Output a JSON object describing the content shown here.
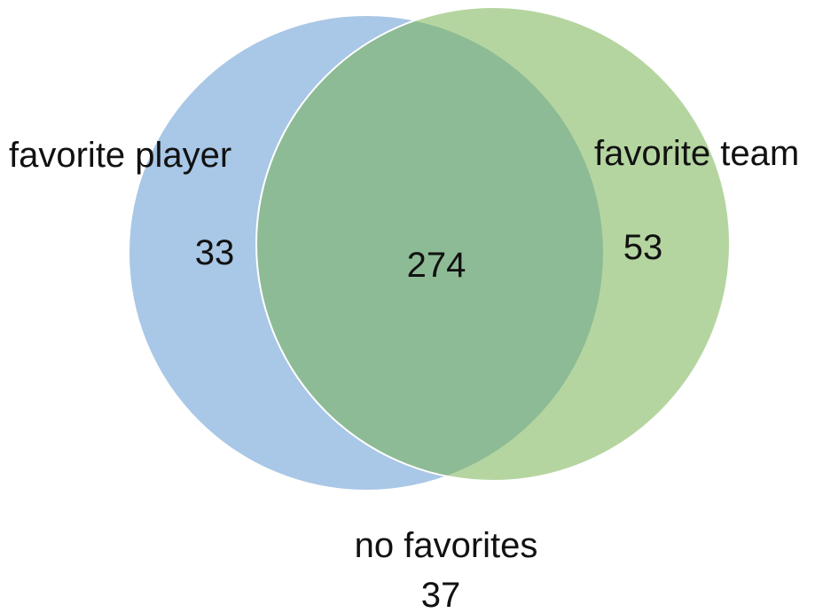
{
  "venn": {
    "sets": [
      {
        "key": "player",
        "label": "favorite player",
        "only_count": "33",
        "color": "#A9C7E6"
      },
      {
        "key": "team",
        "label": "favorite team",
        "only_count": "53",
        "color": "#B5D5A0"
      }
    ],
    "overlap_count": "274",
    "overlap_color": "#8DBB95",
    "outside": {
      "label": "no favorites",
      "count": "37"
    },
    "stroke_color": "#ffffff"
  }
}
